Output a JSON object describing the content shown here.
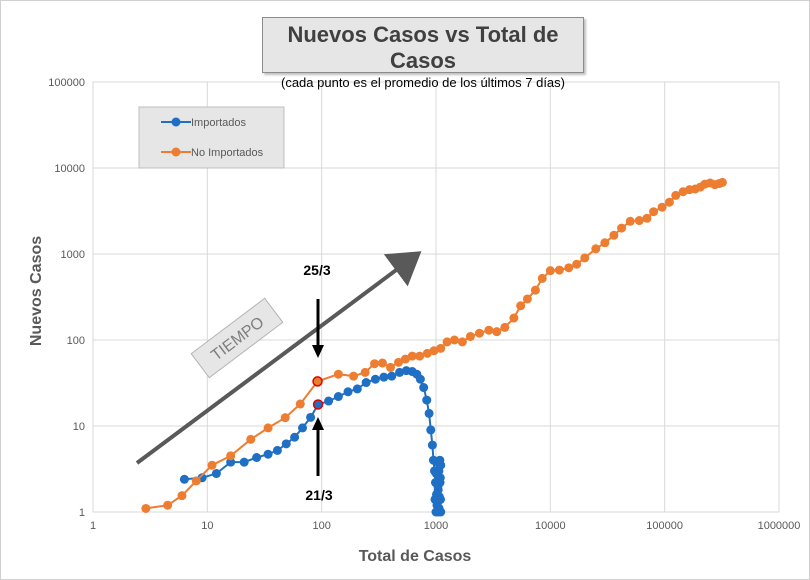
{
  "chart_data": {
    "type": "scatter",
    "title": "Nuevos Casos vs Total de Casos",
    "subtitle": "(cada punto es el promedio de los últimos 7 días)",
    "xlabel": "Total de Casos",
    "ylabel": "Nuevos Casos",
    "x_scale": "log",
    "y_scale": "log",
    "xlim": [
      1,
      1000000
    ],
    "ylim": [
      1,
      100000
    ],
    "x_ticks": [
      "1",
      "10",
      "100",
      "1000",
      "10000",
      "100000",
      "1000000"
    ],
    "y_ticks": [
      "1",
      "10",
      "100",
      "1000",
      "10000",
      "100000"
    ],
    "grid": true,
    "legend_position": "top-left",
    "series": [
      {
        "name": "Importados",
        "color": "#1f6fc5",
        "points": [
          [
            6.3,
            2.4
          ],
          [
            9,
            2.5
          ],
          [
            12,
            2.8
          ],
          [
            16,
            3.8
          ],
          [
            21,
            3.8
          ],
          [
            27,
            4.3
          ],
          [
            34,
            4.7
          ],
          [
            41,
            5.2
          ],
          [
            49,
            6.2
          ],
          [
            58,
            7.4
          ],
          [
            68,
            9.5
          ],
          [
            80,
            12.6
          ],
          [
            93,
            17.8
          ],
          [
            115,
            19.5
          ],
          [
            140,
            22
          ],
          [
            170,
            25
          ],
          [
            205,
            27
          ],
          [
            245,
            32
          ],
          [
            295,
            35
          ],
          [
            350,
            37
          ],
          [
            410,
            38
          ],
          [
            480,
            42
          ],
          [
            550,
            44
          ],
          [
            620,
            43
          ],
          [
            680,
            40
          ],
          [
            730,
            35
          ],
          [
            780,
            28
          ],
          [
            830,
            20
          ],
          [
            870,
            14
          ],
          [
            900,
            9
          ],
          [
            930,
            6
          ],
          [
            950,
            4
          ],
          [
            970,
            3
          ],
          [
            990,
            2.2
          ],
          [
            1010,
            1.6
          ],
          [
            1030,
            1.3
          ],
          [
            1050,
            1
          ],
          [
            1070,
            1.5
          ],
          [
            1090,
            2.5
          ],
          [
            1100,
            3.5
          ],
          [
            1080,
            4
          ],
          [
            1060,
            3
          ],
          [
            1040,
            2
          ],
          [
            1020,
            1.2
          ],
          [
            1000,
            1
          ],
          [
            980,
            1.4
          ],
          [
            1005,
            2.8
          ],
          [
            1025,
            3.8
          ],
          [
            1045,
            1.8
          ],
          [
            1065,
            1.1
          ],
          [
            1085,
            2.2
          ],
          [
            1095,
            1.4
          ],
          [
            1100,
            1
          ]
        ]
      },
      {
        "name": "No Importados",
        "color": "#ed7d31",
        "points": [
          [
            2.9,
            1.1
          ],
          [
            4.5,
            1.2
          ],
          [
            6,
            1.55
          ],
          [
            8,
            2.3
          ],
          [
            11,
            3.5
          ],
          [
            16,
            4.5
          ],
          [
            24,
            7
          ],
          [
            34,
            9.5
          ],
          [
            48,
            12.5
          ],
          [
            65,
            18
          ],
          [
            92,
            33
          ],
          [
            140,
            40
          ],
          [
            190,
            38
          ],
          [
            240,
            42
          ],
          [
            290,
            53
          ],
          [
            340,
            54
          ],
          [
            400,
            48
          ],
          [
            470,
            55
          ],
          [
            540,
            60
          ],
          [
            620,
            65
          ],
          [
            720,
            65
          ],
          [
            840,
            70
          ],
          [
            960,
            75
          ],
          [
            1100,
            80
          ],
          [
            1250,
            95
          ],
          [
            1450,
            100
          ],
          [
            1700,
            95
          ],
          [
            2000,
            110
          ],
          [
            2400,
            120
          ],
          [
            2900,
            130
          ],
          [
            3400,
            125
          ],
          [
            4000,
            140
          ],
          [
            4800,
            180
          ],
          [
            5500,
            250
          ],
          [
            6300,
            300
          ],
          [
            7400,
            380
          ],
          [
            8500,
            520
          ],
          [
            10000,
            640
          ],
          [
            12000,
            650
          ],
          [
            14500,
            690
          ],
          [
            17000,
            760
          ],
          [
            20000,
            900
          ],
          [
            25000,
            1150
          ],
          [
            30000,
            1350
          ],
          [
            36000,
            1650
          ],
          [
            42000,
            2000
          ],
          [
            50000,
            2400
          ],
          [
            60000,
            2450
          ],
          [
            70000,
            2600
          ],
          [
            80000,
            3100
          ],
          [
            95000,
            3500
          ],
          [
            110000,
            4000
          ],
          [
            125000,
            4800
          ],
          [
            145000,
            5300
          ],
          [
            165000,
            5600
          ],
          [
            185000,
            5700
          ],
          [
            205000,
            6000
          ],
          [
            225000,
            6500
          ],
          [
            250000,
            6700
          ],
          [
            275000,
            6400
          ],
          [
            300000,
            6600
          ],
          [
            320000,
            6800
          ]
        ]
      }
    ],
    "annotations": {
      "time_arrow_label": "TIEMPO",
      "upper_marker_label": "25/3",
      "lower_marker_label": "21/3"
    },
    "highlights": [
      {
        "series": "No Importados",
        "x": 92,
        "y": 33,
        "label": "25/3"
      },
      {
        "series": "Importados",
        "x": 93,
        "y": 17.8,
        "label": "21/3"
      }
    ]
  }
}
